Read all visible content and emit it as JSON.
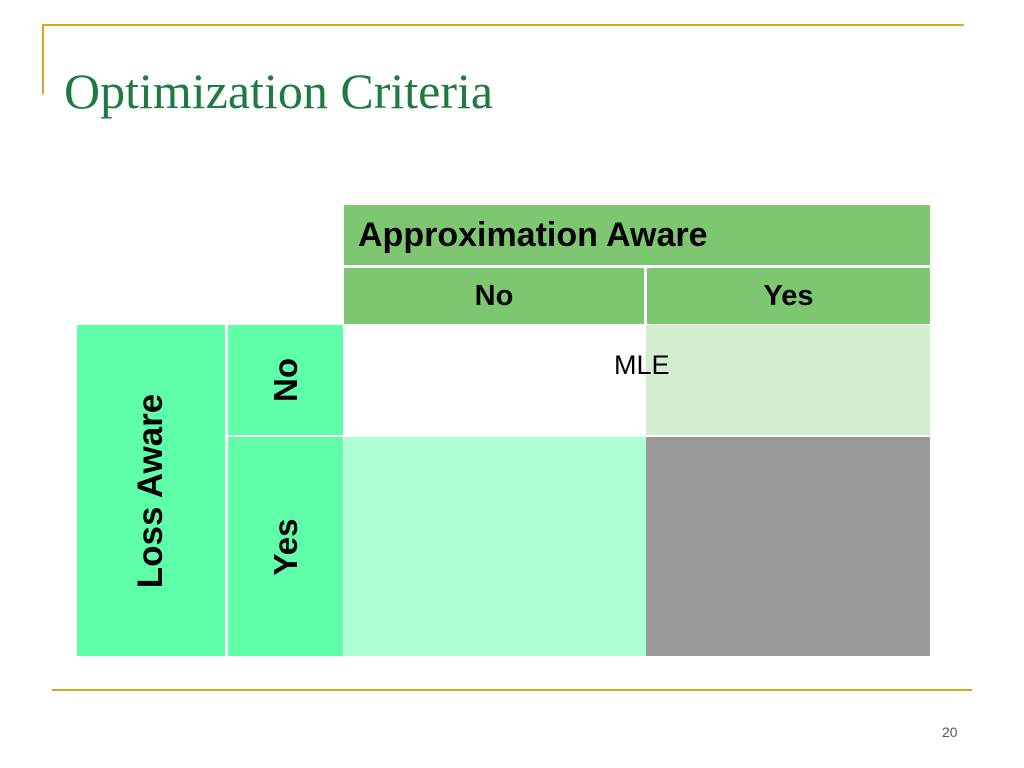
{
  "slide": {
    "title": "Optimization Criteria",
    "page_number": "20"
  },
  "table": {
    "column_group_header": "Approximation Aware",
    "column_headers": [
      "No",
      "Yes"
    ],
    "row_group_header": "Loss Aware",
    "row_headers": [
      "No",
      "Yes"
    ],
    "spanning_label": "MLE"
  },
  "colors": {
    "title": "#1f7a3f",
    "frame_lines": "#d9a520",
    "header_green": "#7ec771",
    "row_header_green": "#5effa8",
    "no_yes_cell": "#d3edd1",
    "yes_no_cell": "#acffd3",
    "yes_yes_cell": "#999999"
  }
}
